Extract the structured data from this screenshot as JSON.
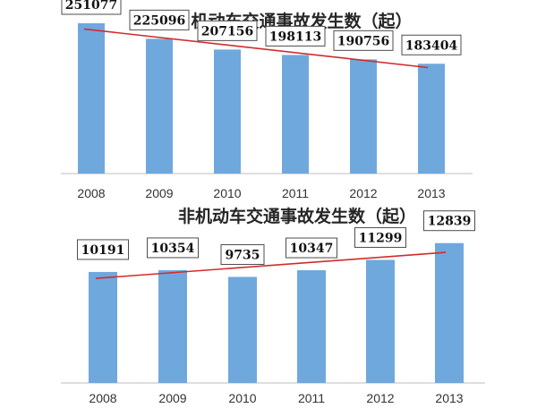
{
  "chart_data": [
    {
      "type": "bar",
      "title": "机动车交通事故发生数（起）",
      "categories": [
        "2008",
        "2009",
        "2010",
        "2011",
        "2012",
        "2013"
      ],
      "values": [
        251077,
        225096,
        207156,
        198113,
        190756,
        183404
      ],
      "trendline": {
        "type": "linear",
        "color": "#d22b2b"
      },
      "bar_color": "#6fa8dc",
      "ylim": [
        0,
        260000
      ]
    },
    {
      "type": "bar",
      "title": "非机动车交通事故发生数（起）",
      "categories": [
        "2008",
        "2009",
        "2010",
        "2011",
        "2012",
        "2013"
      ],
      "values": [
        10191,
        10354,
        9735,
        10347,
        11299,
        12839
      ],
      "trendline": {
        "type": "linear",
        "color": "#d22b2b"
      },
      "bar_color": "#6fa8dc",
      "ylim": [
        0,
        13800
      ]
    }
  ]
}
